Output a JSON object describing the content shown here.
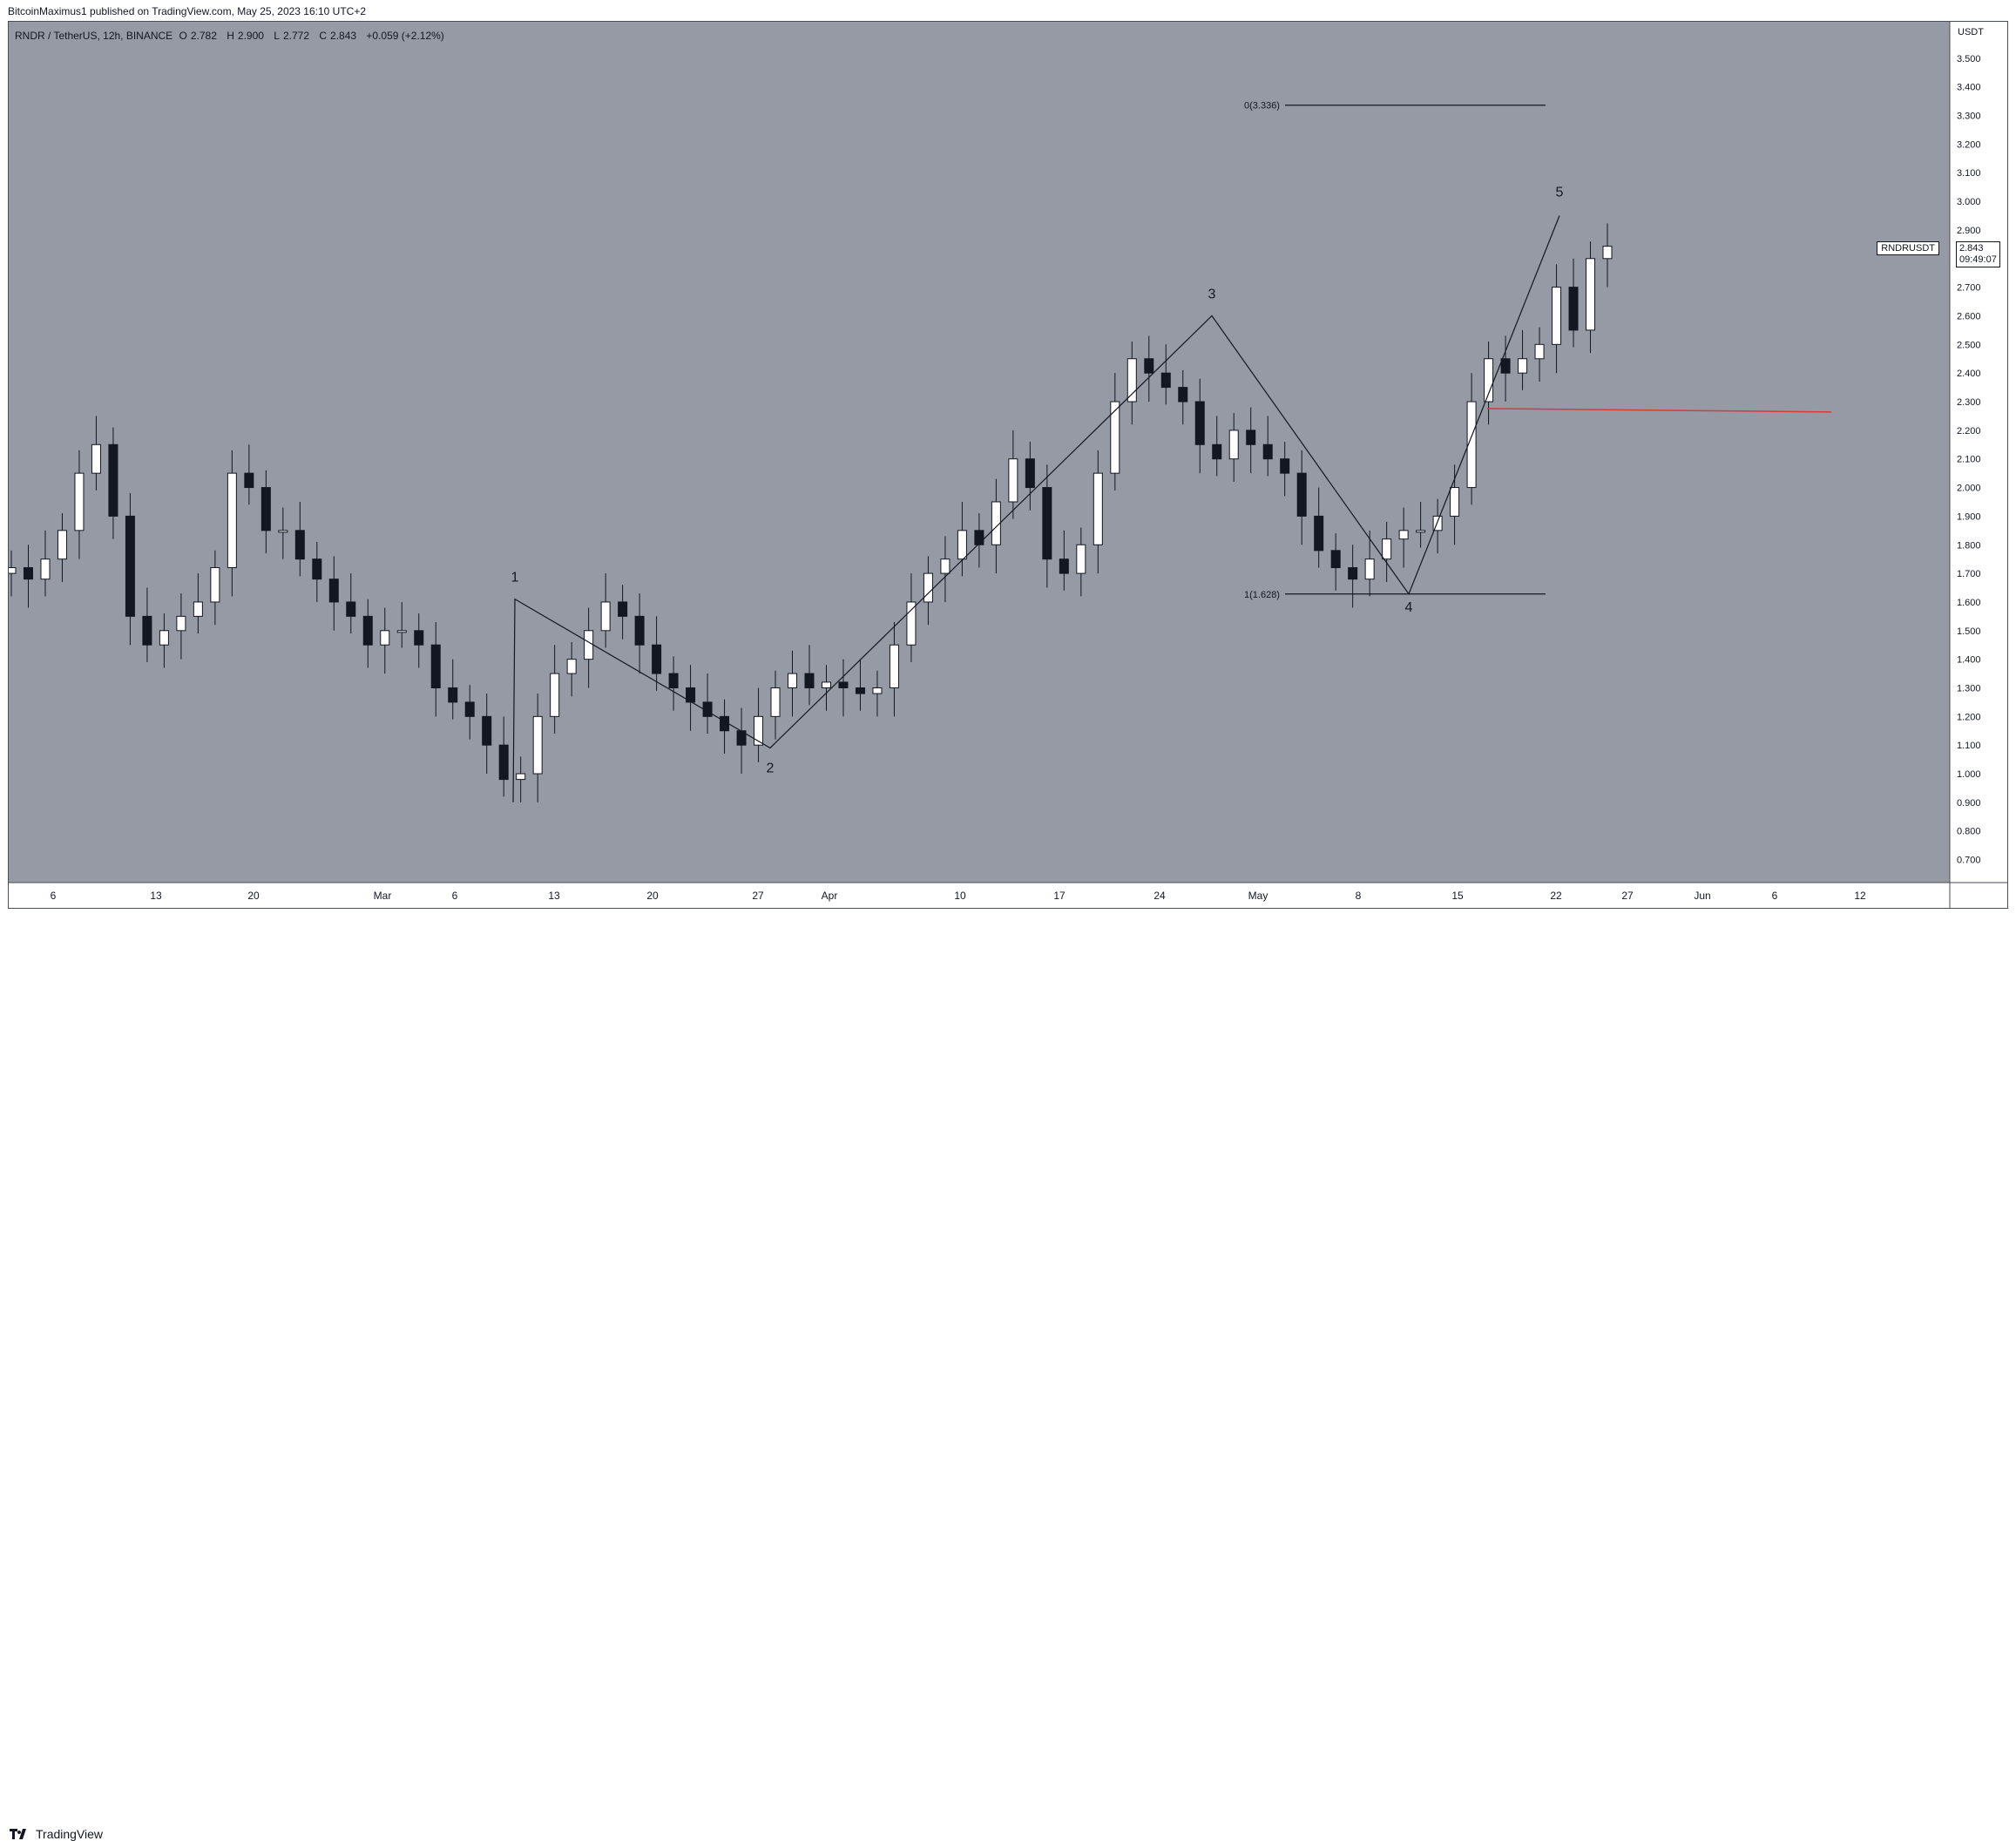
{
  "header": {
    "publish_text": "BitcoinMaximus1 published on TradingView.com, May 25, 2023 16:10 UTC+2",
    "symbol_line": "RNDR / TetherUS, 12h, BINANCE",
    "open_label": "O",
    "open": "2.782",
    "high_label": "H",
    "high": "2.900",
    "low_label": "L",
    "low": "2.772",
    "close_label": "C",
    "close": "2.843",
    "change": "+0.059 (+2.12%)"
  },
  "price_axis": {
    "currency": "USDT",
    "ticks": [
      "3.500",
      "3.400",
      "3.300",
      "3.200",
      "3.100",
      "3.000",
      "2.900",
      "2.800",
      "2.700",
      "2.600",
      "2.500",
      "2.400",
      "2.300",
      "2.200",
      "2.100",
      "2.000",
      "1.900",
      "1.800",
      "1.700",
      "1.600",
      "1.500",
      "1.400",
      "1.300",
      "1.200",
      "1.100",
      "1.000",
      "0.900",
      "0.800",
      "0.700"
    ]
  },
  "time_axis": {
    "ticks": [
      "6",
      "13",
      "20",
      "Mar",
      "6",
      "13",
      "20",
      "27",
      "Apr",
      "10",
      "17",
      "24",
      "May",
      "8",
      "15",
      "22",
      "27",
      "Jun",
      "6",
      "12"
    ]
  },
  "symbol_tag": {
    "name": "RNDRUSDT",
    "price": "2.843",
    "countdown": "09:49:07"
  },
  "annotations": {
    "wave_labels": [
      "1",
      "2",
      "3",
      "4",
      "5"
    ],
    "fib_top": "0(3.336)",
    "fib_bottom": "1(1.628)"
  },
  "footer": {
    "brand": "TradingView"
  },
  "colors": {
    "plot_bg": "#959aa4",
    "bull_candle": "#ffffff",
    "bear_candle": "#131722",
    "support_line": "#d93a3a",
    "wave_line": "#131722"
  },
  "chart_data": {
    "type": "candlestick",
    "title": "RNDR / TetherUS, 12h, BINANCE",
    "ylabel": "USDT",
    "ylim": [
      0.65,
      3.6
    ],
    "x_ticks": [
      "6",
      "13",
      "20",
      "Mar",
      "6",
      "13",
      "20",
      "27",
      "Apr",
      "10",
      "17",
      "24",
      "May",
      "8",
      "15",
      "22",
      "27",
      "Jun",
      "6",
      "12"
    ],
    "candle_closes_approx": [
      1.72,
      1.68,
      1.75,
      1.85,
      2.05,
      2.15,
      1.9,
      1.55,
      1.45,
      1.5,
      1.55,
      1.6,
      1.72,
      2.05,
      2.0,
      1.85,
      1.85,
      1.75,
      1.68,
      1.6,
      1.55,
      1.45,
      1.5,
      1.5,
      1.45,
      1.3,
      1.25,
      1.2,
      1.1,
      0.98,
      1.0,
      1.2,
      1.35,
      1.4,
      1.5,
      1.6,
      1.55,
      1.45,
      1.35,
      1.3,
      1.25,
      1.2,
      1.15,
      1.1,
      1.2,
      1.3,
      1.35,
      1.3,
      1.32,
      1.3,
      1.28,
      1.3,
      1.45,
      1.6,
      1.7,
      1.75,
      1.85,
      1.8,
      1.95,
      2.1,
      2.0,
      1.75,
      1.7,
      1.8,
      2.05,
      2.3,
      2.45,
      2.4,
      2.35,
      2.3,
      2.15,
      2.1,
      2.2,
      2.15,
      2.1,
      2.05,
      1.9,
      1.78,
      1.72,
      1.68,
      1.75,
      1.82,
      1.85,
      1.85,
      1.9,
      2.0,
      2.3,
      2.45,
      2.4,
      2.45,
      2.5,
      2.7,
      2.55,
      2.8,
      2.843
    ],
    "elliott_waves": [
      {
        "label": "1",
        "value": 1.61
      },
      {
        "label": "2",
        "value": 1.09
      },
      {
        "label": "3",
        "value": 2.6
      },
      {
        "label": "4",
        "value": 1.628
      },
      {
        "label": "5",
        "value": 2.95
      }
    ],
    "fib_levels": [
      {
        "label": "0(3.336)",
        "value": 3.336
      },
      {
        "label": "1(1.628)",
        "value": 1.628
      }
    ],
    "support_line": {
      "value": 2.27
    },
    "last_price": 2.843
  }
}
